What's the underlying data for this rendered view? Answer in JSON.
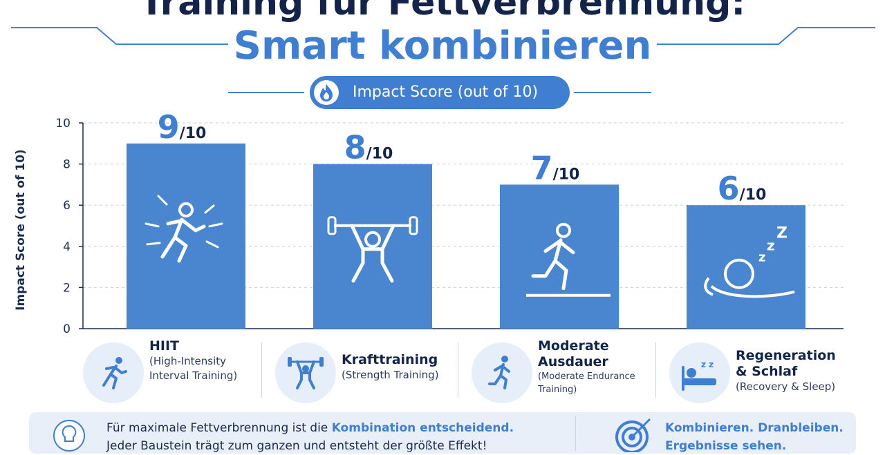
{
  "title": {
    "line1": "Training für Fettverbrennung:",
    "line2": "Smart kombinieren"
  },
  "pill": {
    "label": "Impact Score (out of 10)",
    "icon": "flame-icon"
  },
  "chart_data": {
    "type": "bar",
    "categories": [
      "HIIT",
      "Krafttraining",
      "Moderate Ausdauer",
      "Regeneration & Schlaf"
    ],
    "values": [
      9,
      8,
      7,
      6
    ],
    "value_labels": [
      "9",
      "8",
      "7",
      "6"
    ],
    "value_suffix": "/10",
    "ylabel": "Impact Score (out of 10)",
    "ylim": [
      0,
      10
    ],
    "yticks": [
      "0",
      "2",
      "4",
      "6",
      "8",
      "10"
    ],
    "grid": true,
    "bar_color": "#4a86cf",
    "bar_icons": [
      "sprinter-icon",
      "weightlifter-icon",
      "runner-icon",
      "sleeping-person-icon"
    ]
  },
  "cards": [
    {
      "name": "HIIT",
      "sub": [
        "(High-Intensity",
        "Interval Training)"
      ],
      "icon": "sprinter-icon"
    },
    {
      "name": "Krafttraining",
      "sub": [
        "(Strength Training)"
      ],
      "icon": "weightlifter-icon"
    },
    {
      "name": "Moderate",
      "name2": "Ausdauer",
      "sub": [
        "(Moderate Endurance",
        "Training)"
      ],
      "icon": "runner-icon"
    },
    {
      "name": "Regeneration",
      "name2": "& Schlaf",
      "sub": [
        "(Recovery & Sleep)"
      ],
      "icon": "bed-icon"
    }
  ],
  "footer": {
    "text_plain": "Für maximale Fettverbrennung ist die ",
    "text_bold": "Kombination entscheidend.",
    "line2": "Jeder Baustein trägt zum ganzen und entsteht der größte Effekt!",
    "right_line1": "Kombinieren. Dranbleiben.",
    "right_line2": "Ergebnisse sehen.",
    "left_icon": "lightbulb-icon",
    "right_icon": "target-icon"
  },
  "colors": {
    "accent": "#3f7ed0",
    "navy": "#13234a",
    "bar": "#4a86cf"
  }
}
